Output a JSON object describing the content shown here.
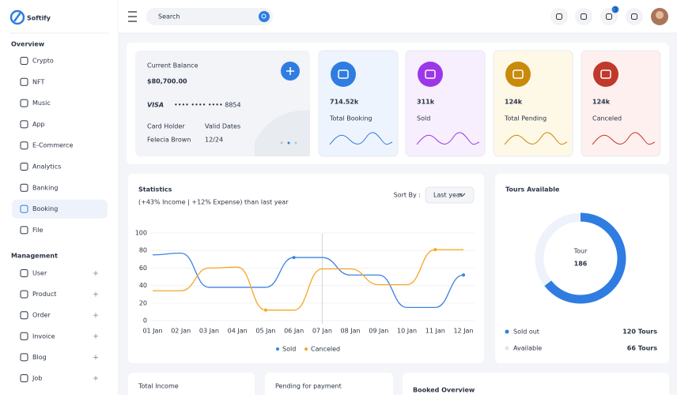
{
  "app": {
    "brand": "Softify",
    "search": "Search",
    "notifications": 3
  },
  "sidebar": [
    {
      "title": "Overview",
      "items": [
        "Crypto",
        "NFT",
        "Music",
        "App",
        "E-Commerce",
        "Analytics",
        "Banking",
        "Booking",
        "File"
      ]
    },
    {
      "title": "Management",
      "items": [
        "User",
        "Product",
        "Order",
        "Invoice",
        "Blog",
        "Job"
      ]
    }
  ],
  "balance_card": {
    "label": "Current Balance",
    "amount": "$80,700.00",
    "card_brand": "VISA",
    "card_number": "•••• •••• •••• 8854",
    "holder_label": "Card Holder",
    "holder": "Felecia Brown",
    "valid_label": "Valid Dates",
    "valid": "12/24"
  },
  "stat_cards": [
    {
      "value": "714.52k",
      "label": "Total Booking",
      "color": "#2f7de1",
      "bg": "#eef4fd"
    },
    {
      "value": "311k",
      "label": "Sold",
      "color": "#9b37e8",
      "bg": "#f7effd"
    },
    {
      "value": "124k",
      "label": "Total Pending",
      "color": "#c98a0b",
      "bg": "#fef8e7"
    },
    {
      "value": "124k",
      "label": "Canceled",
      "color": "#c0392b",
      "bg": "#fdf0ee"
    }
  ],
  "statistics_controls": {
    "sort_label": "Sort By :",
    "sort_value": "Last year"
  },
  "chart_data": [
    {
      "type": "line",
      "title": "Statistics",
      "subtitle": "(+43% Income | +12% Expense) than last year",
      "categories": [
        "01 Jan",
        "02 Jan",
        "03 Jan",
        "04 Jan",
        "05 Jan",
        "06 Jan",
        "07 Jan",
        "08 Jan",
        "09 Jan",
        "10 Jan",
        "11 Jan",
        "12 Jan"
      ],
      "series": [
        {
          "name": "Sold",
          "color": "#3b82e6",
          "values": [
            75,
            77,
            38,
            38,
            38,
            72,
            72,
            52,
            52,
            15,
            15,
            52
          ]
        },
        {
          "name": "Canceled",
          "color": "#f5a623",
          "values": [
            34,
            34,
            60,
            61,
            12,
            12,
            59,
            59,
            41,
            41,
            81,
            81
          ]
        }
      ],
      "ylim": [
        0,
        100
      ],
      "yticks": [
        0,
        20,
        40,
        60,
        80,
        100
      ],
      "grid": true
    },
    {
      "type": "donut",
      "title": "Tours Available",
      "center_label": "Tour",
      "center_value": 186,
      "categories": [
        "Sold out",
        "Available"
      ],
      "values": [
        120,
        66
      ],
      "value_labels": [
        "120 Tours",
        "66 Tours"
      ],
      "colors": [
        "#2f7de1",
        "#eef2fa"
      ]
    }
  ],
  "bottom_cards": [
    "Total Income",
    "Pending for payment",
    "Booked Overview"
  ]
}
